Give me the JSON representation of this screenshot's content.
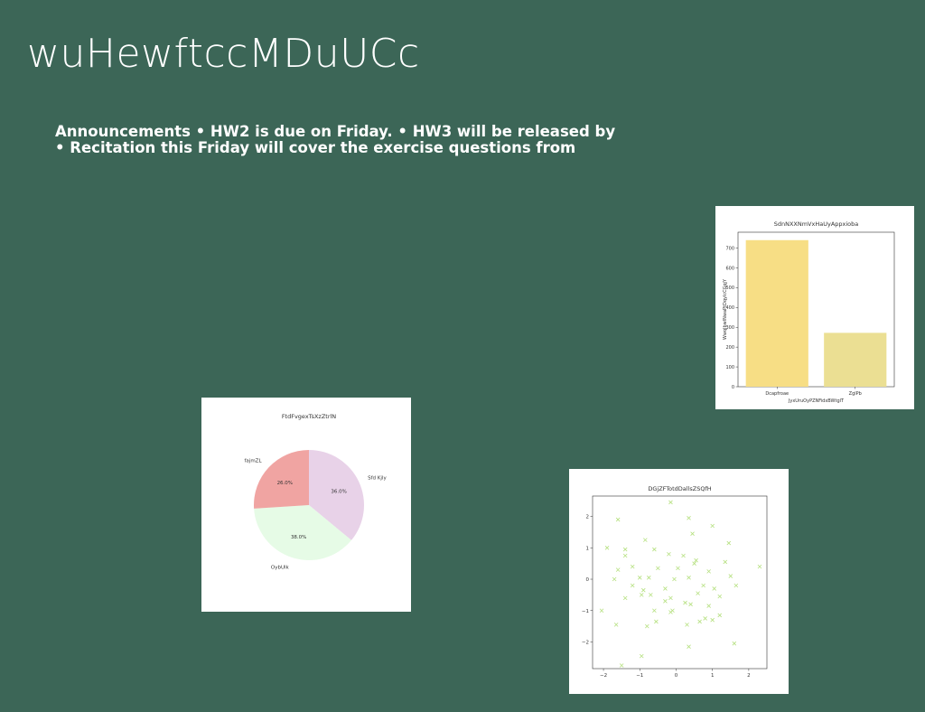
{
  "slide": {
    "title": "wuHewftccMDuUCc",
    "announcement_line1": "Announcements • HW2 is due on Friday. • HW3 will be released by",
    "announcement_line2": "• Recitation this Friday will cover the exercise questions from"
  },
  "chart_data": [
    {
      "type": "bar",
      "title": "SdnNXXNmVxHaUyAppxioba",
      "xlabel": "JyxUruOyPZNFidxBWtglT",
      "ylabel": "WwqlbwlNwaPtDqylcCGqjY",
      "categories": [
        "Dcapfroae",
        "ZglPb"
      ],
      "values": [
        740,
        272
      ],
      "colors": [
        "#f7de85",
        "#ebdf93"
      ],
      "ylim": [
        0,
        780
      ],
      "yticks": [
        0,
        100,
        200,
        300,
        400,
        500,
        600,
        700
      ]
    },
    {
      "type": "pie",
      "title": "FtdFvgexTsXzZtrlN",
      "labels": [
        "Sfd Kjly",
        "OybUlk",
        "fajmZL"
      ],
      "values": [
        36.0,
        38.0,
        26.0
      ],
      "autopct": [
        "36.0%",
        "38.0%",
        "26.0%"
      ],
      "colors": [
        "#e8d2e8",
        "#e6fbe6",
        "#f0a4a2"
      ]
    },
    {
      "type": "scatter",
      "title": "DGjZFTotdDallsZSQfH",
      "marker": "x",
      "color": "#b5e07f",
      "xlim": [
        -2.3,
        2.5
      ],
      "ylim": [
        -2.85,
        2.65
      ],
      "xticks": [
        -2,
        -1,
        0,
        1,
        2
      ],
      "yticks": [
        -2,
        -1,
        0,
        1,
        2
      ],
      "points": [
        [
          -0.15,
          2.45
        ],
        [
          -1.6,
          1.9
        ],
        [
          0.35,
          1.95
        ],
        [
          1.0,
          1.7
        ],
        [
          -0.85,
          1.25
        ],
        [
          -1.9,
          1.0
        ],
        [
          -1.4,
          0.95
        ],
        [
          1.45,
          1.15
        ],
        [
          0.45,
          1.45
        ],
        [
          -0.6,
          0.95
        ],
        [
          -1.4,
          0.75
        ],
        [
          -0.2,
          0.8
        ],
        [
          0.2,
          0.75
        ],
        [
          0.55,
          0.6
        ],
        [
          1.35,
          0.55
        ],
        [
          0.5,
          0.5
        ],
        [
          -0.5,
          0.35
        ],
        [
          0.05,
          0.35
        ],
        [
          0.9,
          0.25
        ],
        [
          -1.6,
          0.3
        ],
        [
          -1.7,
          0.0
        ],
        [
          -1.0,
          0.05
        ],
        [
          -0.75,
          0.05
        ],
        [
          0.35,
          0.05
        ],
        [
          -1.2,
          -0.2
        ],
        [
          -0.9,
          -0.35
        ],
        [
          -0.7,
          -0.5
        ],
        [
          -0.3,
          -0.3
        ],
        [
          0.75,
          -0.2
        ],
        [
          1.5,
          0.1
        ],
        [
          2.3,
          0.4
        ],
        [
          -0.15,
          -0.6
        ],
        [
          -0.3,
          -0.7
        ],
        [
          0.6,
          -0.45
        ],
        [
          1.2,
          -0.55
        ],
        [
          -1.4,
          -0.6
        ],
        [
          -0.95,
          -0.5
        ],
        [
          0.25,
          -0.75
        ],
        [
          -0.1,
          -1.0
        ],
        [
          0.4,
          -0.8
        ],
        [
          0.9,
          -0.85
        ],
        [
          -0.6,
          -1.0
        ],
        [
          -0.15,
          -1.05
        ],
        [
          0.8,
          -1.25
        ],
        [
          1.2,
          -1.15
        ],
        [
          -2.05,
          -1.0
        ],
        [
          -0.55,
          -1.35
        ],
        [
          0.3,
          -1.45
        ],
        [
          -1.65,
          -1.45
        ],
        [
          1.65,
          -0.2
        ],
        [
          0.35,
          -2.15
        ],
        [
          1.6,
          -2.05
        ],
        [
          -0.95,
          -2.45
        ],
        [
          -1.5,
          -2.75
        ],
        [
          -0.8,
          -1.5
        ],
        [
          1.05,
          -0.3
        ],
        [
          -0.05,
          0.0
        ],
        [
          0.65,
          -1.35
        ],
        [
          1.0,
          -1.3
        ],
        [
          -1.2,
          0.4
        ]
      ]
    }
  ]
}
